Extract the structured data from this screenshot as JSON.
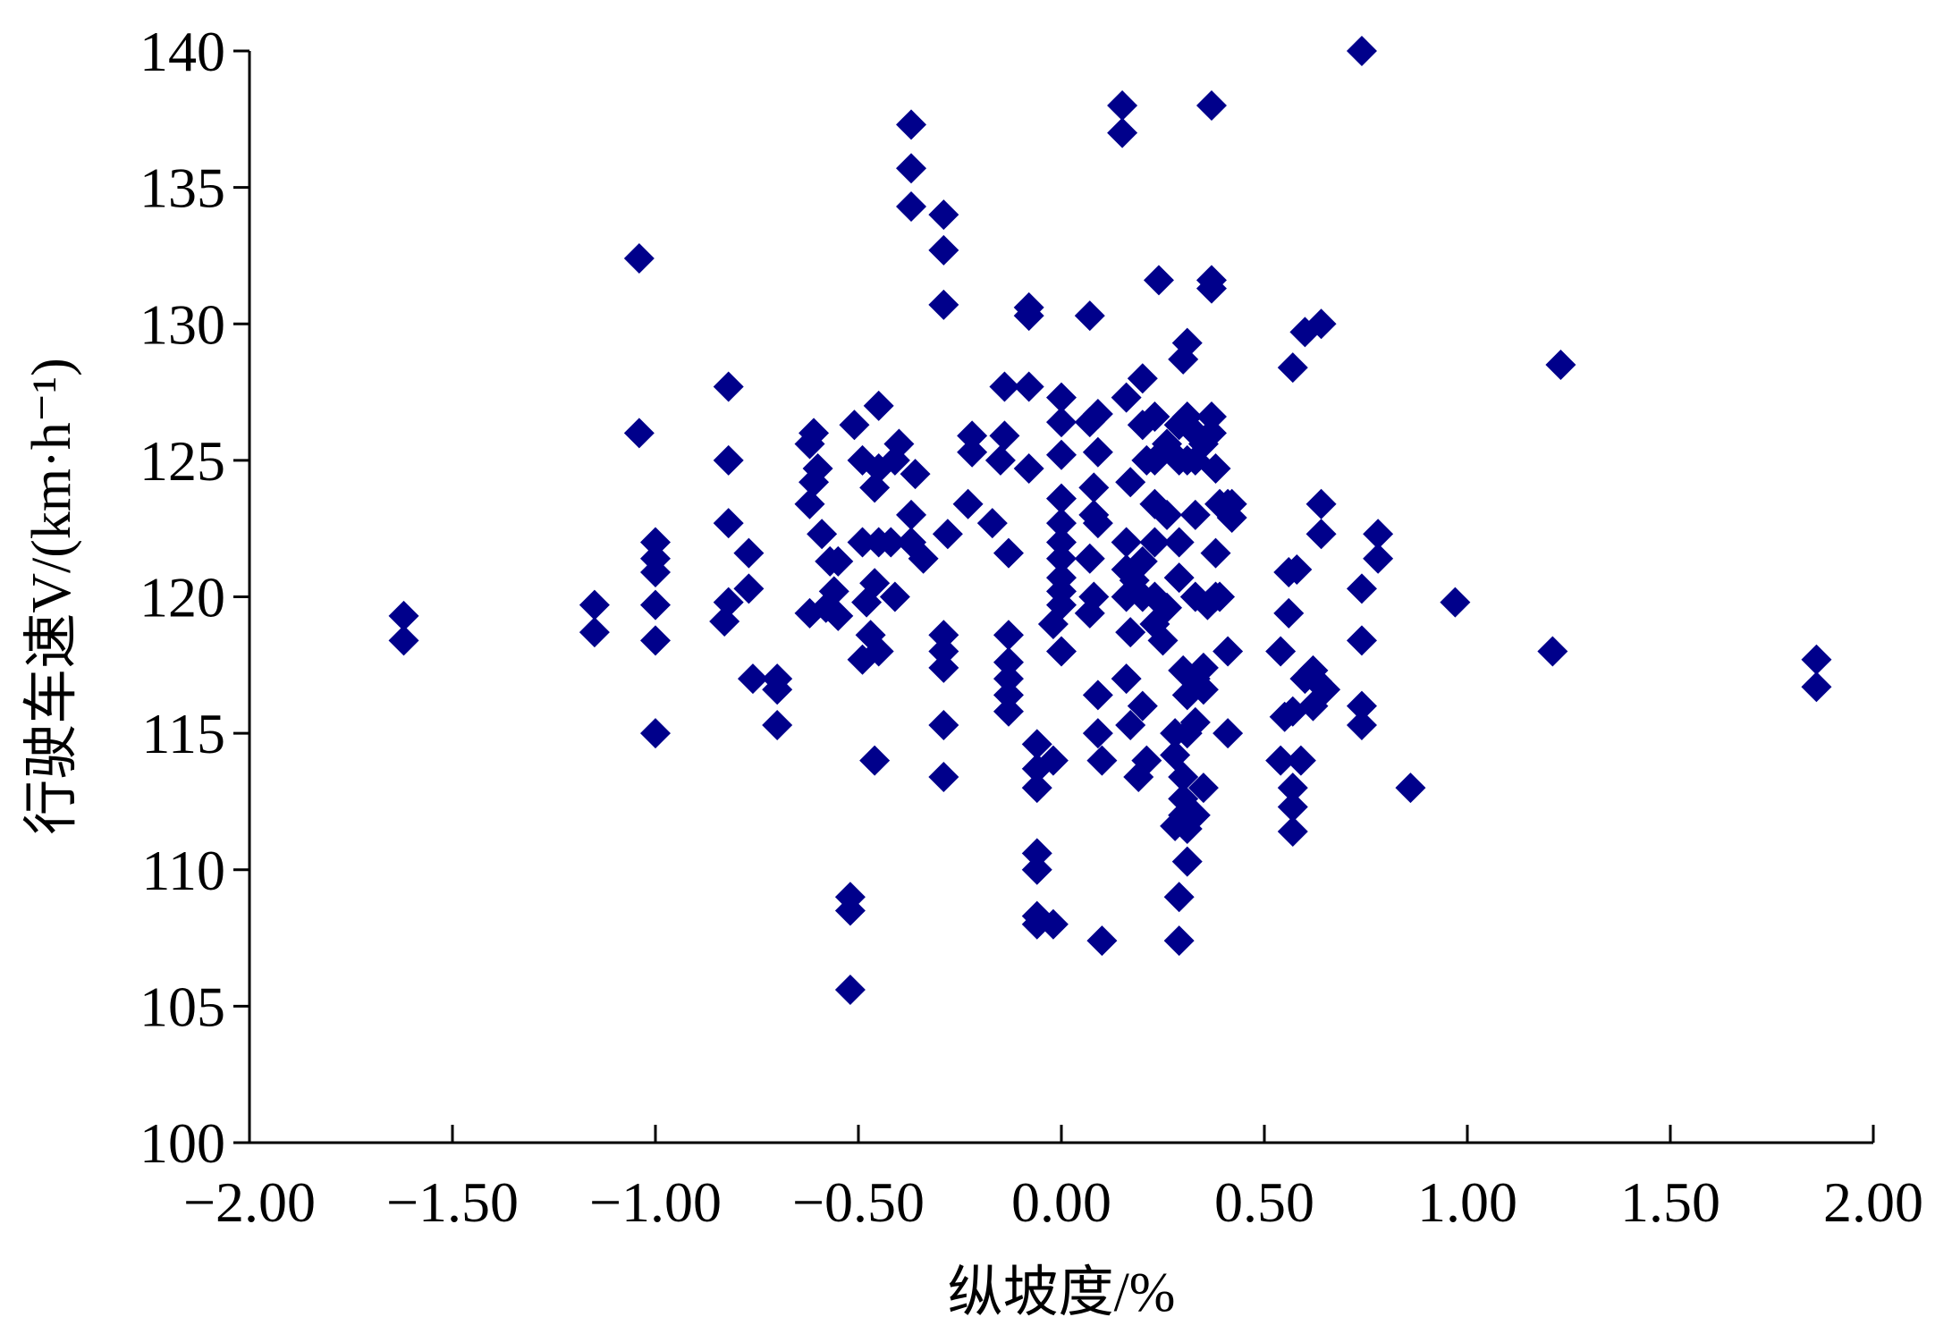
{
  "chart_data": {
    "type": "scatter",
    "title": "",
    "xlabel": "纵坡度/%",
    "ylabel": "行驶车速V/(km·h⁻¹)",
    "xlim": [
      -2.0,
      2.0
    ],
    "ylim": [
      100,
      140
    ],
    "xticks": [
      "−2.00",
      "−1.50",
      "−1.00",
      "−0.50",
      "0.00",
      "0.50",
      "1.00",
      "1.50",
      "2.00"
    ],
    "xtick_values": [
      -2.0,
      -1.5,
      -1.0,
      -0.5,
      0.0,
      0.5,
      1.0,
      1.5,
      2.0
    ],
    "yticks": [
      "100",
      "105",
      "110",
      "115",
      "120",
      "125",
      "130",
      "135",
      "140"
    ],
    "ytick_values": [
      100,
      105,
      110,
      115,
      120,
      125,
      130,
      135,
      140
    ],
    "grid": false,
    "legend": "none",
    "marker": "diamond",
    "color": "#00008B",
    "points": [
      [
        -1.62,
        119.3
      ],
      [
        -1.62,
        118.4
      ],
      [
        -1.15,
        119.7
      ],
      [
        -1.15,
        118.7
      ],
      [
        -1.04,
        132.4
      ],
      [
        -1.04,
        126.0
      ],
      [
        -1.0,
        122.0
      ],
      [
        -1.0,
        121.4
      ],
      [
        -1.0,
        120.9
      ],
      [
        -1.0,
        119.7
      ],
      [
        -1.0,
        118.4
      ],
      [
        -1.0,
        115.0
      ],
      [
        -0.82,
        127.7
      ],
      [
        -0.82,
        125.0
      ],
      [
        -0.82,
        122.7
      ],
      [
        -0.82,
        119.8
      ],
      [
        -0.83,
        119.1
      ],
      [
        -0.77,
        121.6
      ],
      [
        -0.77,
        120.3
      ],
      [
        -0.76,
        117.0
      ],
      [
        -0.7,
        117.0
      ],
      [
        -0.7,
        116.6
      ],
      [
        -0.7,
        115.3
      ],
      [
        -0.61,
        126.0
      ],
      [
        -0.62,
        125.6
      ],
      [
        -0.6,
        124.7
      ],
      [
        -0.61,
        124.2
      ],
      [
        -0.62,
        123.4
      ],
      [
        -0.59,
        122.3
      ],
      [
        -0.62,
        119.4
      ],
      [
        -0.57,
        121.3
      ],
      [
        -0.56,
        120.2
      ],
      [
        -0.58,
        119.6
      ],
      [
        -0.55,
        121.3
      ],
      [
        -0.55,
        119.3
      ],
      [
        -0.52,
        109.0
      ],
      [
        -0.52,
        108.5
      ],
      [
        -0.52,
        105.6
      ],
      [
        -0.51,
        126.3
      ],
      [
        -0.49,
        125.0
      ],
      [
        -0.49,
        122.0
      ],
      [
        -0.48,
        119.8
      ],
      [
        -0.49,
        117.7
      ],
      [
        -0.45,
        127.0
      ],
      [
        -0.45,
        124.7
      ],
      [
        -0.46,
        124.0
      ],
      [
        -0.45,
        122.0
      ],
      [
        -0.46,
        120.5
      ],
      [
        -0.47,
        118.6
      ],
      [
        -0.45,
        118.0
      ],
      [
        -0.46,
        114.0
      ],
      [
        -0.42,
        122.0
      ],
      [
        -0.41,
        120.0
      ],
      [
        -0.4,
        125.6
      ],
      [
        -0.41,
        125.0
      ],
      [
        -0.37,
        137.3
      ],
      [
        -0.37,
        135.7
      ],
      [
        -0.37,
        134.3
      ],
      [
        -0.36,
        124.5
      ],
      [
        -0.37,
        123.0
      ],
      [
        -0.37,
        122.0
      ],
      [
        -0.34,
        121.4
      ],
      [
        -0.29,
        134.0
      ],
      [
        -0.29,
        132.7
      ],
      [
        -0.29,
        130.7
      ],
      [
        -0.28,
        122.3
      ],
      [
        -0.29,
        118.6
      ],
      [
        -0.29,
        118.0
      ],
      [
        -0.29,
        117.4
      ],
      [
        -0.29,
        115.3
      ],
      [
        -0.29,
        113.4
      ],
      [
        -0.22,
        125.9
      ],
      [
        -0.22,
        125.3
      ],
      [
        -0.23,
        123.4
      ],
      [
        -0.17,
        122.7
      ],
      [
        -0.15,
        125.0
      ],
      [
        -0.14,
        127.7
      ],
      [
        -0.14,
        125.9
      ],
      [
        -0.13,
        121.6
      ],
      [
        -0.13,
        118.6
      ],
      [
        -0.13,
        117.6
      ],
      [
        -0.13,
        117.0
      ],
      [
        -0.13,
        116.4
      ],
      [
        -0.13,
        115.8
      ],
      [
        -0.08,
        130.6
      ],
      [
        -0.08,
        130.3
      ],
      [
        -0.08,
        127.7
      ],
      [
        -0.08,
        124.7
      ],
      [
        -0.06,
        114.6
      ],
      [
        -0.06,
        113.7
      ],
      [
        -0.06,
        113.0
      ],
      [
        -0.06,
        110.6
      ],
      [
        -0.06,
        110.0
      ],
      [
        -0.06,
        108.3
      ],
      [
        -0.06,
        108.0
      ],
      [
        -0.02,
        108.0
      ],
      [
        -0.02,
        114.0
      ],
      [
        0.0,
        127.3
      ],
      [
        0.0,
        126.4
      ],
      [
        0.0,
        125.2
      ],
      [
        0.0,
        123.6
      ],
      [
        0.0,
        122.7
      ],
      [
        0.0,
        122.0
      ],
      [
        0.0,
        121.4
      ],
      [
        0.0,
        120.7
      ],
      [
        0.0,
        120.2
      ],
      [
        0.0,
        119.7
      ],
      [
        -0.02,
        119.0
      ],
      [
        0.0,
        118.0
      ],
      [
        0.07,
        130.3
      ],
      [
        0.07,
        126.4
      ],
      [
        0.08,
        124.0
      ],
      [
        0.08,
        123.0
      ],
      [
        0.07,
        121.4
      ],
      [
        0.08,
        120.0
      ],
      [
        0.07,
        119.4
      ],
      [
        0.09,
        126.7
      ],
      [
        0.09,
        125.3
      ],
      [
        0.09,
        122.7
      ],
      [
        0.09,
        116.4
      ],
      [
        0.09,
        115.0
      ],
      [
        0.1,
        114.0
      ],
      [
        0.1,
        107.4
      ],
      [
        0.15,
        138.0
      ],
      [
        0.15,
        137.0
      ],
      [
        0.16,
        127.3
      ],
      [
        0.17,
        124.2
      ],
      [
        0.16,
        122.0
      ],
      [
        0.16,
        121.0
      ],
      [
        0.16,
        120.0
      ],
      [
        0.16,
        117.0
      ],
      [
        0.18,
        120.6
      ],
      [
        0.17,
        118.7
      ],
      [
        0.17,
        115.3
      ],
      [
        0.2,
        128.0
      ],
      [
        0.2,
        126.3
      ],
      [
        0.21,
        125.0
      ],
      [
        0.2,
        121.3
      ],
      [
        0.2,
        120.0
      ],
      [
        0.2,
        116.0
      ],
      [
        0.21,
        114.0
      ],
      [
        0.19,
        113.4
      ],
      [
        0.23,
        126.6
      ],
      [
        0.23,
        125.0
      ],
      [
        0.23,
        123.4
      ],
      [
        0.23,
        122.0
      ],
      [
        0.23,
        120.0
      ],
      [
        0.23,
        119.0
      ],
      [
        0.24,
        131.6
      ],
      [
        0.26,
        125.6
      ],
      [
        0.26,
        123.0
      ],
      [
        0.25,
        118.4
      ],
      [
        0.26,
        119.6
      ],
      [
        0.3,
        128.7
      ],
      [
        0.29,
        126.3
      ],
      [
        0.29,
        125.0
      ],
      [
        0.29,
        122.0
      ],
      [
        0.29,
        120.7
      ],
      [
        0.28,
        115.0
      ],
      [
        0.28,
        114.2
      ],
      [
        0.28,
        111.6
      ],
      [
        0.29,
        109.0
      ],
      [
        0.29,
        107.4
      ],
      [
        0.31,
        129.3
      ],
      [
        0.31,
        126.6
      ],
      [
        0.31,
        125.0
      ],
      [
        0.3,
        117.3
      ],
      [
        0.31,
        116.4
      ],
      [
        0.31,
        115.0
      ],
      [
        0.3,
        113.4
      ],
      [
        0.3,
        112.6
      ],
      [
        0.3,
        112.0
      ],
      [
        0.31,
        111.5
      ],
      [
        0.31,
        110.3
      ],
      [
        0.33,
        126.0
      ],
      [
        0.33,
        125.0
      ],
      [
        0.33,
        123.0
      ],
      [
        0.33,
        120.0
      ],
      [
        0.33,
        117.0
      ],
      [
        0.33,
        115.4
      ],
      [
        0.33,
        112.0
      ],
      [
        0.35,
        125.6
      ],
      [
        0.35,
        117.4
      ],
      [
        0.35,
        116.6
      ],
      [
        0.35,
        113.0
      ],
      [
        0.37,
        138.0
      ],
      [
        0.37,
        131.6
      ],
      [
        0.37,
        131.3
      ],
      [
        0.37,
        126.6
      ],
      [
        0.37,
        126.0
      ],
      [
        0.38,
        124.7
      ],
      [
        0.39,
        123.4
      ],
      [
        0.38,
        121.6
      ],
      [
        0.38,
        120.0
      ],
      [
        0.36,
        119.7
      ],
      [
        0.41,
        123.4
      ],
      [
        0.39,
        120.0
      ],
      [
        0.41,
        118.0
      ],
      [
        0.41,
        115.0
      ],
      [
        0.42,
        123.4
      ],
      [
        0.42,
        122.9
      ],
      [
        0.54,
        118.0
      ],
      [
        0.55,
        115.6
      ],
      [
        0.54,
        114.0
      ],
      [
        0.57,
        128.4
      ],
      [
        0.56,
        120.9
      ],
      [
        0.56,
        119.4
      ],
      [
        0.57,
        115.8
      ],
      [
        0.57,
        113.0
      ],
      [
        0.57,
        112.3
      ],
      [
        0.57,
        111.4
      ],
      [
        0.6,
        129.7
      ],
      [
        0.58,
        121.0
      ],
      [
        0.6,
        117.0
      ],
      [
        0.59,
        114.0
      ],
      [
        0.62,
        117.3
      ],
      [
        0.63,
        116.9
      ],
      [
        0.62,
        116.0
      ],
      [
        0.64,
        130.0
      ],
      [
        0.64,
        123.4
      ],
      [
        0.64,
        122.3
      ],
      [
        0.65,
        116.6
      ],
      [
        0.74,
        140.0
      ],
      [
        0.74,
        120.3
      ],
      [
        0.74,
        118.4
      ],
      [
        0.74,
        116.0
      ],
      [
        0.74,
        115.3
      ],
      [
        0.78,
        122.3
      ],
      [
        0.78,
        121.4
      ],
      [
        0.86,
        113.0
      ],
      [
        0.97,
        119.8
      ],
      [
        1.21,
        118.0
      ],
      [
        1.23,
        128.5
      ],
      [
        1.86,
        117.7
      ],
      [
        1.86,
        116.7
      ]
    ]
  }
}
